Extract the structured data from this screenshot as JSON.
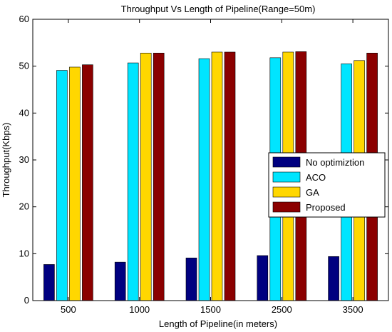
{
  "chart_data": {
    "type": "bar",
    "title": "Throughput Vs Length of Pipeline(Range=50m)",
    "xlabel": "Length of Pipeline(in meters)",
    "ylabel": "Throughput(Kbps)",
    "ylim": [
      0,
      60
    ],
    "yticks": [
      0,
      10,
      20,
      30,
      40,
      50,
      60
    ],
    "grid": false,
    "legend_position": "right",
    "categories": [
      "500",
      "1000",
      "1500",
      "2500",
      "3500"
    ],
    "series": [
      {
        "name": "No optimiztion",
        "color": "#000080",
        "values": [
          7.7,
          8.2,
          9.1,
          9.6,
          9.4
        ]
      },
      {
        "name": "ACO",
        "color": "#00e5ff",
        "values": [
          49.1,
          50.7,
          51.6,
          51.8,
          50.5
        ]
      },
      {
        "name": "GA",
        "color": "#ffd700",
        "values": [
          49.8,
          52.8,
          53.0,
          53.0,
          51.2
        ]
      },
      {
        "name": "Proposed",
        "color": "#8b0000",
        "values": [
          50.3,
          52.8,
          53.0,
          53.1,
          52.8
        ]
      }
    ]
  }
}
